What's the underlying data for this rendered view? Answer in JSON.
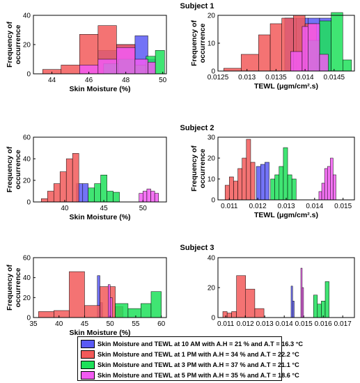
{
  "colors": {
    "blue": "#5a5af5",
    "red": "#f25a5a",
    "green": "#1ee05a",
    "magenta": "#f25af2"
  },
  "legend": [
    {
      "label": "Skin Moisture and TEWL at 10 AM with A.H = 21 % and  A.T = 16.3 °C",
      "color": "#5a5af5"
    },
    {
      "label": "Skin Moisture and TEWL at 1 PM with A.H = 34 % and  A.T = 22.2 °C",
      "color": "#f25a5a"
    },
    {
      "label": "Skin Moisture and TEWL at 3 PM with A.H = 37 % and  A.T = 21.1 °C",
      "color": "#1ee05a"
    },
    {
      "label": "Skin Moisture and TEWL at 5 PM with A.H = 35 % and  A.T = 18.6 °C",
      "color": "#f25af2"
    }
  ],
  "chart_data": [
    {
      "type": "bar",
      "title": "Subject 1",
      "xlabel": "Skin Moisture (%)",
      "ylabel": "Frequency of occurrence",
      "xlim": [
        43,
        50.2
      ],
      "ylim": [
        0,
        40
      ],
      "xticks": [
        44,
        46,
        48,
        50
      ],
      "yticks": [
        0,
        20,
        40
      ],
      "series": [
        {
          "color": "blue",
          "bars": [
            [
              46.5,
              47.5,
              16
            ],
            [
              47.5,
              48.5,
              20
            ],
            [
              48.5,
              49.2,
              26
            ],
            [
              49.2,
              49.6,
              10
            ]
          ]
        },
        {
          "color": "red",
          "bars": [
            [
              43.5,
              44.5,
              3
            ],
            [
              44.5,
              45.5,
              6
            ],
            [
              45.5,
              46.5,
              27
            ],
            [
              46.5,
              47.5,
              33
            ],
            [
              47.5,
              48.5,
              20
            ]
          ]
        },
        {
          "color": "green",
          "bars": [
            [
              46.8,
              47.6,
              7
            ],
            [
              47.6,
              48.5,
              10
            ],
            [
              48.5,
              49.1,
              6
            ],
            [
              49.1,
              49.6,
              12
            ],
            [
              49.6,
              50.1,
              16
            ]
          ]
        },
        {
          "color": "magenta",
          "bars": [
            [
              45.5,
              46.5,
              6
            ],
            [
              46.5,
              47.5,
              10
            ],
            [
              47.5,
              48.5,
              18
            ],
            [
              48.5,
              49.2,
              10
            ],
            [
              49.2,
              49.6,
              8
            ]
          ]
        }
      ]
    },
    {
      "type": "bar",
      "title": "Subject 1",
      "xlabel": "TEWL (μgm/cm².s)",
      "ylabel": "Frequency of occurrence",
      "xlim": [
        0.0125,
        0.01485
      ],
      "ylim": [
        0,
        20
      ],
      "xticks": [
        0.0125,
        0.013,
        0.0135,
        0.014,
        0.0145
      ],
      "xticklabels": [
        "0.0125",
        "0.013",
        "0.0135",
        "0.014",
        "0.0145"
      ],
      "yticks": [
        0,
        10,
        20
      ],
      "series": [
        {
          "color": "blue",
          "bars": [
            [
              0.01365,
              0.01385,
              19
            ],
            [
              0.01385,
              0.01405,
              19
            ],
            [
              0.01405,
              0.01425,
              19
            ],
            [
              0.01425,
              0.01445,
              19
            ]
          ]
        },
        {
          "color": "red",
          "bars": [
            [
              0.0126,
              0.0129,
              1
            ],
            [
              0.0129,
              0.0132,
              6
            ],
            [
              0.0132,
              0.0134,
              13
            ],
            [
              0.0134,
              0.0136,
              17
            ],
            [
              0.0136,
              0.0138,
              19
            ],
            [
              0.0138,
              0.014,
              20
            ],
            [
              0.014,
              0.0142,
              17
            ]
          ]
        },
        {
          "color": "green",
          "bars": [
            [
              0.01405,
              0.01425,
              11
            ],
            [
              0.01425,
              0.01445,
              18
            ],
            [
              0.01445,
              0.01465,
              21
            ],
            [
              0.01465,
              0.0148,
              4
            ]
          ]
        },
        {
          "color": "magenta",
          "bars": [
            [
              0.01375,
              0.01395,
              7
            ],
            [
              0.01395,
              0.01405,
              16
            ],
            [
              0.01405,
              0.01425,
              17
            ],
            [
              0.01425,
              0.0144,
              6
            ]
          ]
        }
      ]
    },
    {
      "type": "bar",
      "title": "Subject 2",
      "xlabel": "Skin Moisture (%)",
      "ylabel": "Frequency of occurrence",
      "xlim": [
        36,
        53
      ],
      "ylim": [
        0,
        60
      ],
      "xticks": [
        40,
        45,
        50
      ],
      "yticks": [
        0,
        20,
        40,
        60
      ],
      "series": [
        {
          "color": "blue",
          "bars": [
            [
              41.5,
              42.3,
              17
            ],
            [
              42.3,
              43.0,
              17
            ]
          ]
        },
        {
          "color": "red",
          "bars": [
            [
              37.0,
              37.8,
              3
            ],
            [
              37.8,
              38.6,
              10
            ],
            [
              38.6,
              39.4,
              17
            ],
            [
              39.4,
              40.2,
              28
            ],
            [
              40.2,
              41.0,
              40
            ],
            [
              41.0,
              41.8,
              45
            ]
          ]
        },
        {
          "color": "green",
          "bars": [
            [
              43.0,
              43.8,
              13
            ],
            [
              43.8,
              44.6,
              17
            ],
            [
              44.6,
              45.4,
              25
            ],
            [
              45.4,
              46.2,
              10
            ],
            [
              46.2,
              47.0,
              9
            ]
          ]
        },
        {
          "color": "magenta",
          "bars": [
            [
              49.5,
              50.0,
              8
            ],
            [
              50.0,
              50.5,
              10
            ],
            [
              50.5,
              51.0,
              12
            ],
            [
              51.0,
              51.5,
              10
            ],
            [
              51.5,
              52.0,
              8
            ]
          ]
        }
      ]
    },
    {
      "type": "bar",
      "title": "Subject 2",
      "xlabel": "TEWL (μgm/cm².s)",
      "ylabel": "Frequency of occurrence",
      "xlim": [
        0.0106,
        0.0154
      ],
      "ylim": [
        0,
        30
      ],
      "xticks": [
        0.011,
        0.012,
        0.013,
        0.014,
        0.015
      ],
      "xticklabels": [
        "0.011",
        "0.012",
        "0.013",
        "0.014",
        "0.015"
      ],
      "yticks": [
        0,
        10,
        20,
        30
      ],
      "series": [
        {
          "color": "blue",
          "bars": [
            [
              0.01195,
              0.0121,
              16
            ],
            [
              0.0121,
              0.01225,
              17
            ],
            [
              0.01225,
              0.0124,
              18
            ]
          ]
        },
        {
          "color": "red",
          "bars": [
            [
              0.01085,
              0.011,
              7
            ],
            [
              0.011,
              0.01115,
              11
            ],
            [
              0.01115,
              0.0113,
              9
            ],
            [
              0.0113,
              0.01145,
              15
            ],
            [
              0.01145,
              0.0116,
              20
            ],
            [
              0.0116,
              0.01175,
              29
            ],
            [
              0.01175,
              0.0119,
              18
            ]
          ]
        },
        {
          "color": "green",
          "bars": [
            [
              0.01245,
              0.0126,
              10
            ],
            [
              0.0126,
              0.01275,
              12
            ],
            [
              0.01275,
              0.0129,
              16
            ],
            [
              0.0129,
              0.01305,
              25
            ],
            [
              0.01305,
              0.0132,
              12
            ],
            [
              0.0132,
              0.01335,
              10
            ]
          ]
        },
        {
          "color": "magenta",
          "bars": [
            [
              0.01415,
              0.01425,
              4
            ],
            [
              0.01425,
              0.01435,
              8
            ],
            [
              0.01435,
              0.01445,
              15
            ],
            [
              0.01445,
              0.01455,
              16
            ],
            [
              0.01455,
              0.01465,
              20
            ],
            [
              0.01465,
              0.01475,
              12
            ]
          ]
        }
      ]
    },
    {
      "type": "bar",
      "title": "Subject 3",
      "xlabel": "Skin Moisture (%)",
      "ylabel": "Frequency of occurrence",
      "xlim": [
        35,
        61
      ],
      "ylim": [
        0,
        60
      ],
      "xticks": [
        35,
        40,
        45,
        50,
        55,
        60
      ],
      "yticks": [
        0,
        20,
        40,
        60
      ],
      "series": [
        {
          "color": "blue",
          "bars": [
            [
              47.5,
              48.0,
              42
            ],
            [
              48.0,
              48.5,
              15
            ]
          ]
        },
        {
          "color": "red",
          "bars": [
            [
              36.0,
              39.0,
              6
            ],
            [
              39.0,
              42.0,
              7
            ],
            [
              42.0,
              45.0,
              46
            ],
            [
              45.0,
              48.0,
              12
            ],
            [
              48.0,
              51.0,
              31
            ],
            [
              51.0,
              52.5,
              11
            ]
          ]
        },
        {
          "color": "green",
          "bars": [
            [
              51.0,
              53.5,
              14
            ],
            [
              53.5,
              56.0,
              9
            ],
            [
              56.0,
              58.0,
              14
            ],
            [
              58.0,
              60.0,
              26
            ]
          ]
        },
        {
          "color": "magenta",
          "bars": [
            [
              49.6,
              50.0,
              33
            ],
            [
              50.0,
              50.4,
              20
            ]
          ]
        }
      ]
    },
    {
      "type": "bar",
      "title": "Subject 3",
      "xlabel": "",
      "ylabel": "",
      "xlim": [
        0.0106,
        0.0176
      ],
      "ylim": [
        0,
        40
      ],
      "xticks": [
        0.011,
        0.012,
        0.013,
        0.014,
        0.015,
        0.016,
        0.017
      ],
      "xticklabels": [
        "0.011",
        "0.012",
        "0.013",
        "0.014",
        "0.015",
        "0.016",
        "0.017"
      ],
      "yticks": [
        0,
        20,
        40
      ],
      "series": [
        {
          "color": "blue",
          "bars": [
            [
              0.01435,
              0.01443,
              21
            ],
            [
              0.01443,
              0.01451,
              11
            ]
          ]
        },
        {
          "color": "red",
          "bars": [
            [
              0.01085,
              0.01107,
              4
            ],
            [
              0.01107,
              0.0113,
              3
            ],
            [
              0.0113,
              0.01155,
              4
            ],
            [
              0.01155,
              0.01202,
              28
            ],
            [
              0.01202,
              0.01249,
              19
            ],
            [
              0.01249,
              0.01296,
              6
            ]
          ]
        },
        {
          "color": "green",
          "bars": [
            [
              0.0155,
              0.0157,
              15
            ],
            [
              0.0157,
              0.0159,
              9
            ],
            [
              0.0159,
              0.0161,
              11
            ],
            [
              0.0161,
              0.0163,
              24
            ]
          ]
        },
        {
          "color": "magenta",
          "bars": [
            [
              0.01485,
              0.01492,
              33
            ],
            [
              0.01492,
              0.01499,
              20
            ]
          ]
        }
      ]
    }
  ]
}
